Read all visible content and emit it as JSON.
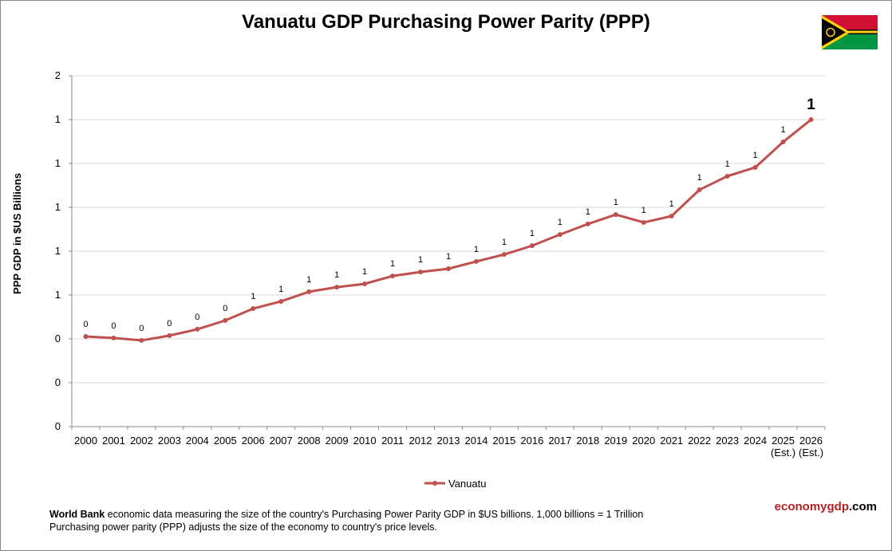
{
  "chart_data": {
    "type": "line",
    "title": "Vanuatu GDP Purchasing Power Parity (PPP)",
    "y_label": "PPP GDP in $US Billions",
    "categories": [
      "2000",
      "2001",
      "2002",
      "2003",
      "2004",
      "2005",
      "2006",
      "2007",
      "2008",
      "2009",
      "2010",
      "2011",
      "2012",
      "2013",
      "2014",
      "2015",
      "2016",
      "2017",
      "2018",
      "2019",
      "2020",
      "2021",
      "2022",
      "2023",
      "2024",
      "2025 (Est.)",
      "2026 (Est.)"
    ],
    "series": [
      {
        "name": "Vanuatu",
        "color": "#c0504d",
        "values": [
          0.411,
          0.404,
          0.393,
          0.415,
          0.444,
          0.484,
          0.538,
          0.571,
          0.615,
          0.636,
          0.651,
          0.687,
          0.705,
          0.72,
          0.753,
          0.785,
          0.825,
          0.876,
          0.924,
          0.967,
          0.931,
          0.96,
          1.08,
          1.142,
          1.182,
          1.298,
          1.4
        ],
        "value_labels": [
          "0",
          "0",
          "0",
          "0",
          "0",
          "0",
          "1",
          "1",
          "1",
          "1",
          "1",
          "1",
          "1",
          "1",
          "1",
          "1",
          "1",
          "1",
          "1",
          "1",
          "1",
          "1",
          "1",
          "1",
          "1",
          "1",
          "1"
        ]
      }
    ],
    "ylim": [
      0,
      1.6
    ],
    "yticks": [
      0,
      {
        "value": 0.2,
        "label": "0"
      },
      {
        "value": 0.4,
        "label": "0"
      },
      {
        "value": 0.6,
        "label": "1"
      },
      {
        "value": 0.8,
        "label": "1"
      },
      {
        "value": 1.0,
        "label": "1"
      },
      {
        "value": 1.2,
        "label": "1"
      },
      {
        "value": 1.4,
        "label": "1"
      },
      {
        "value": 1.6,
        "label": "2"
      }
    ],
    "grid": true,
    "legend": "bottom"
  },
  "footer": {
    "source": "World Bank",
    "line1": " economic data measuring the size of the country's Purchasing Power Parity GDP in $US billions. 1,000 billions = 1 Trillion",
    "line2": "Purchasing power parity (PPP) adjusts the size of the economy to country's price levels.",
    "brand": [
      "economygdp",
      ".com"
    ]
  }
}
